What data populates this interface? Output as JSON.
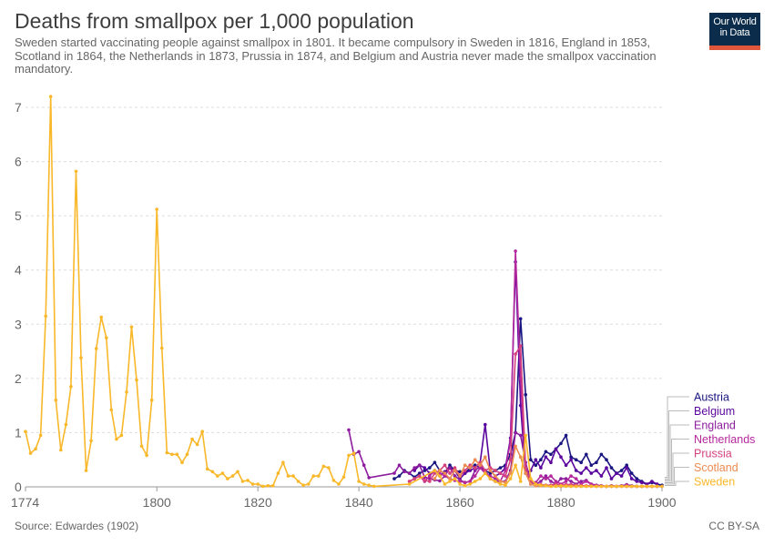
{
  "header": {
    "title": "Deaths from smallpox per 1,000 population",
    "subtitle": "Sweden started vaccinating people against smallpox in 1801. It became compulsory in Sweden in 1816, England in 1853, Scotland in 1864, the Netherlands in 1873, Prussia in 1874, and Belgium and Austria never made the smallpox vaccination mandatory.",
    "logo_line1": "Our World",
    "logo_line2": "in Data"
  },
  "footer": {
    "source": "Source: Edwardes (1902)",
    "license": "CC BY-SA"
  },
  "chart_data": {
    "type": "line",
    "title": "Deaths from smallpox per 1,000 population",
    "xlim": [
      1774,
      1900
    ],
    "ylim": [
      0,
      7
    ],
    "x_ticks": [
      1774,
      1800,
      1820,
      1840,
      1860,
      1880,
      1900
    ],
    "y_ticks": [
      0,
      1,
      2,
      3,
      4,
      5,
      6,
      7
    ],
    "grid": "horizontal",
    "legend": "right",
    "series": [
      {
        "name": "Austria",
        "color": "#1a1681",
        "x": [
          1847,
          1848,
          1849,
          1850,
          1851,
          1852,
          1853,
          1854,
          1855,
          1856,
          1857,
          1858,
          1859,
          1860,
          1861,
          1862,
          1863,
          1864,
          1865,
          1866,
          1867,
          1868,
          1869,
          1870,
          1871,
          1872,
          1873,
          1874,
          1875,
          1876,
          1877,
          1878,
          1879,
          1880,
          1881,
          1882,
          1883,
          1884,
          1885,
          1886,
          1887,
          1888,
          1889,
          1890,
          1891,
          1892,
          1893,
          1894,
          1895,
          1896,
          1897,
          1898,
          1899,
          1900
        ],
        "y": [
          0.15,
          0.2,
          0.3,
          0.25,
          0.18,
          0.25,
          0.3,
          0.35,
          0.45,
          0.3,
          0.25,
          0.4,
          0.3,
          0.28,
          0.25,
          0.35,
          0.4,
          0.35,
          0.3,
          0.25,
          0.3,
          0.35,
          0.4,
          0.6,
          1.0,
          3.1,
          1.7,
          0.5,
          0.4,
          0.5,
          0.65,
          0.6,
          0.7,
          0.8,
          0.95,
          0.55,
          0.5,
          0.45,
          0.6,
          0.4,
          0.45,
          0.6,
          0.5,
          0.35,
          0.25,
          0.3,
          0.4,
          0.25,
          0.15,
          0.1,
          0.05,
          0.08,
          0.05,
          0.03
        ]
      },
      {
        "name": "Belgium",
        "color": "#5a069e",
        "x": [
          1851,
          1852,
          1853,
          1854,
          1855,
          1856,
          1857,
          1858,
          1859,
          1860,
          1861,
          1862,
          1863,
          1864,
          1865,
          1866,
          1867,
          1868,
          1869,
          1870,
          1871,
          1872,
          1873,
          1874,
          1875,
          1876,
          1877,
          1878,
          1879,
          1880,
          1881,
          1882,
          1883,
          1884,
          1885,
          1886,
          1887,
          1888,
          1889,
          1890,
          1891,
          1892,
          1893,
          1894,
          1895,
          1896,
          1897,
          1898,
          1899
        ],
        "y": [
          0.3,
          0.4,
          0.35,
          0.25,
          0.3,
          0.2,
          0.28,
          0.35,
          0.3,
          0.15,
          0.25,
          0.3,
          0.35,
          0.45,
          1.15,
          0.3,
          0.2,
          0.25,
          0.35,
          0.9,
          4.15,
          1.5,
          0.25,
          0.3,
          0.5,
          0.35,
          0.55,
          0.45,
          0.7,
          0.55,
          0.4,
          0.5,
          0.3,
          0.25,
          0.35,
          0.25,
          0.3,
          0.2,
          0.35,
          0.15,
          0.25,
          0.2,
          0.35,
          0.15,
          0.1,
          0.08,
          0.05,
          0.1,
          0.05
        ]
      },
      {
        "name": "England",
        "color": "#8d1d9e",
        "x": [
          1838,
          1839,
          1840,
          1841,
          1842,
          1847,
          1848,
          1849,
          1850,
          1851,
          1852,
          1853,
          1854,
          1855,
          1856,
          1857,
          1858,
          1859,
          1860,
          1861,
          1862,
          1863,
          1864,
          1865,
          1866,
          1867,
          1868,
          1869,
          1870,
          1871,
          1872,
          1873,
          1874,
          1875,
          1876,
          1877,
          1878,
          1879,
          1880,
          1881,
          1882,
          1883,
          1884,
          1885,
          1886,
          1887,
          1888,
          1889,
          1890,
          1891,
          1892,
          1893,
          1894,
          1895,
          1896,
          1897,
          1898,
          1899,
          1900
        ],
        "y": [
          1.05,
          0.6,
          0.65,
          0.4,
          0.17,
          0.25,
          0.4,
          0.28,
          0.25,
          0.35,
          0.4,
          0.18,
          0.15,
          0.13,
          0.11,
          0.2,
          0.35,
          0.2,
          0.13,
          0.08,
          0.1,
          0.3,
          0.38,
          0.3,
          0.15,
          0.1,
          0.1,
          0.1,
          0.3,
          1.0,
          0.95,
          0.45,
          0.1,
          0.05,
          0.1,
          0.2,
          0.1,
          0.05,
          0.15,
          0.15,
          0.1,
          0.05,
          0.1,
          0.12,
          0.05,
          0.03,
          0.02,
          0.01,
          0.02,
          0.01,
          0.02,
          0.04,
          0.02,
          0.01,
          0.01,
          0.01,
          0.01,
          0.01,
          0.01
        ]
      },
      {
        "name": "Netherlands",
        "color": "#b4289e",
        "x": [
          1850,
          1851,
          1852,
          1853,
          1854,
          1855,
          1856,
          1857,
          1858,
          1859,
          1860,
          1861,
          1862,
          1863,
          1864,
          1865,
          1866,
          1867,
          1868,
          1869,
          1870,
          1871,
          1872,
          1873,
          1874,
          1875,
          1876,
          1877,
          1878,
          1879,
          1880,
          1881,
          1882,
          1883,
          1884,
          1885,
          1886,
          1887,
          1888,
          1889,
          1890,
          1891,
          1892,
          1893,
          1894,
          1895,
          1896,
          1897,
          1898,
          1899
        ],
        "y": [
          0.1,
          0.15,
          0.2,
          0.1,
          0.2,
          0.3,
          0.25,
          0.2,
          0.15,
          0.12,
          0.1,
          0.08,
          0.1,
          0.2,
          0.35,
          0.25,
          0.2,
          0.15,
          0.1,
          0.3,
          0.85,
          4.35,
          2.0,
          0.3,
          0.05,
          0.08,
          0.2,
          0.15,
          0.2,
          0.1,
          0.05,
          0.1,
          0.2,
          0.15,
          0.05,
          0.1,
          0.05,
          0.03,
          0.02,
          0.01,
          0.02,
          0.01,
          0.02,
          0.03,
          0.01,
          0.01,
          0.01,
          0.01,
          0.01,
          0.01
        ]
      },
      {
        "name": "Prussia",
        "color": "#d4407b",
        "x": [
          1850,
          1851,
          1852,
          1853,
          1854,
          1855,
          1856,
          1857,
          1858,
          1859,
          1860,
          1861,
          1862,
          1863,
          1864,
          1865,
          1866,
          1867,
          1868,
          1869,
          1870,
          1871,
          1872,
          1873,
          1874,
          1875,
          1876,
          1877,
          1878,
          1879,
          1880,
          1881,
          1882,
          1883,
          1884,
          1885,
          1886,
          1887,
          1888,
          1889,
          1890,
          1891,
          1892,
          1893,
          1894,
          1895,
          1896,
          1897,
          1898,
          1899
        ],
        "y": [
          0.1,
          0.15,
          0.2,
          0.12,
          0.1,
          0.25,
          0.3,
          0.4,
          0.25,
          0.35,
          0.2,
          0.3,
          0.4,
          0.35,
          0.45,
          0.3,
          0.35,
          0.3,
          0.25,
          0.2,
          0.5,
          2.45,
          2.6,
          0.35,
          0.1,
          0.05,
          0.04,
          0.03,
          0.03,
          0.05,
          0.03,
          0.04,
          0.04,
          0.03,
          0.02,
          0.02,
          0.02,
          0.01,
          0.01,
          0.01,
          0.01,
          0.01,
          0.01,
          0.01,
          0.01,
          0.01,
          0.01,
          0.01,
          0.01,
          0.01
        ]
      },
      {
        "name": "Scotland",
        "color": "#ec8b51",
        "x": [
          1855,
          1856,
          1857,
          1858,
          1859,
          1860,
          1861,
          1862,
          1863,
          1864,
          1865,
          1866,
          1867,
          1868,
          1869,
          1870,
          1871,
          1872,
          1873,
          1874,
          1875,
          1876,
          1877,
          1878,
          1879,
          1880,
          1881,
          1882,
          1883,
          1884,
          1885,
          1886,
          1887,
          1888,
          1889,
          1890,
          1891,
          1892,
          1893,
          1894,
          1895,
          1896,
          1897,
          1898,
          1899
        ],
        "y": [
          0.15,
          0.3,
          0.25,
          0.15,
          0.3,
          0.2,
          0.4,
          0.35,
          0.5,
          0.4,
          0.55,
          0.3,
          0.2,
          0.1,
          0.08,
          0.25,
          0.75,
          0.55,
          0.25,
          0.05,
          0.02,
          0.02,
          0.02,
          0.01,
          0.02,
          0.01,
          0.02,
          0.01,
          0.01,
          0.01,
          0.01,
          0.01,
          0.01,
          0.01,
          0.01,
          0.01,
          0.01,
          0.01,
          0.01,
          0.01,
          0.01,
          0.01,
          0.01,
          0.01,
          0.01
        ]
      },
      {
        "name": "Sweden",
        "color": "#f9b82a",
        "x": [
          1774,
          1775,
          1776,
          1777,
          1778,
          1779,
          1780,
          1781,
          1782,
          1783,
          1784,
          1785,
          1786,
          1787,
          1788,
          1789,
          1790,
          1791,
          1792,
          1793,
          1794,
          1795,
          1796,
          1797,
          1798,
          1799,
          1800,
          1801,
          1802,
          1803,
          1804,
          1805,
          1806,
          1807,
          1808,
          1809,
          1810,
          1811,
          1812,
          1813,
          1814,
          1815,
          1816,
          1817,
          1818,
          1819,
          1820,
          1821,
          1822,
          1823,
          1824,
          1825,
          1826,
          1827,
          1828,
          1829,
          1830,
          1831,
          1832,
          1833,
          1834,
          1835,
          1836,
          1837,
          1838,
          1839,
          1840,
          1841,
          1842,
          1843,
          1850,
          1855,
          1856,
          1857,
          1858,
          1859,
          1860,
          1861,
          1862,
          1863,
          1864,
          1865,
          1866,
          1867,
          1868,
          1869,
          1870,
          1871,
          1872,
          1873,
          1874,
          1875,
          1876,
          1877,
          1878,
          1879,
          1880,
          1881,
          1882,
          1883,
          1884,
          1885,
          1886,
          1887,
          1888,
          1889,
          1890,
          1891,
          1892,
          1893,
          1894,
          1895,
          1896,
          1897,
          1898,
          1899,
          1900
        ],
        "y": [
          1.02,
          0.62,
          0.7,
          0.95,
          3.15,
          7.2,
          1.6,
          0.68,
          1.15,
          1.85,
          5.82,
          2.38,
          0.3,
          0.85,
          2.55,
          3.13,
          2.75,
          1.42,
          0.88,
          0.95,
          1.75,
          2.95,
          1.97,
          0.75,
          0.58,
          1.6,
          5.12,
          2.56,
          0.63,
          0.6,
          0.6,
          0.45,
          0.6,
          0.88,
          0.78,
          1.02,
          0.33,
          0.28,
          0.2,
          0.25,
          0.15,
          0.2,
          0.28,
          0.1,
          0.12,
          0.05,
          0.05,
          0.01,
          0.02,
          0.02,
          0.25,
          0.45,
          0.2,
          0.2,
          0.1,
          0.03,
          0.05,
          0.2,
          0.2,
          0.38,
          0.35,
          0.12,
          0.05,
          0.18,
          0.58,
          0.62,
          0.1,
          0.05,
          0.03,
          0.01,
          0.05,
          0.3,
          0.2,
          0.05,
          0.1,
          0.15,
          0.05,
          0.02,
          0.05,
          0.1,
          0.15,
          0.25,
          0.15,
          0.1,
          0.05,
          0.03,
          0.15,
          0.4,
          0.1,
          0.95,
          0.15,
          0.05,
          0.03,
          0.02,
          0.01,
          0.01,
          0.02,
          0.01,
          0.01,
          0.01,
          0.01,
          0.01,
          0.01,
          0.01,
          0.01,
          0.01,
          0.01,
          0.01,
          0.01,
          0.01,
          0.01,
          0.01,
          0.01,
          0.01,
          0.01,
          0.01,
          0.01
        ]
      }
    ]
  }
}
